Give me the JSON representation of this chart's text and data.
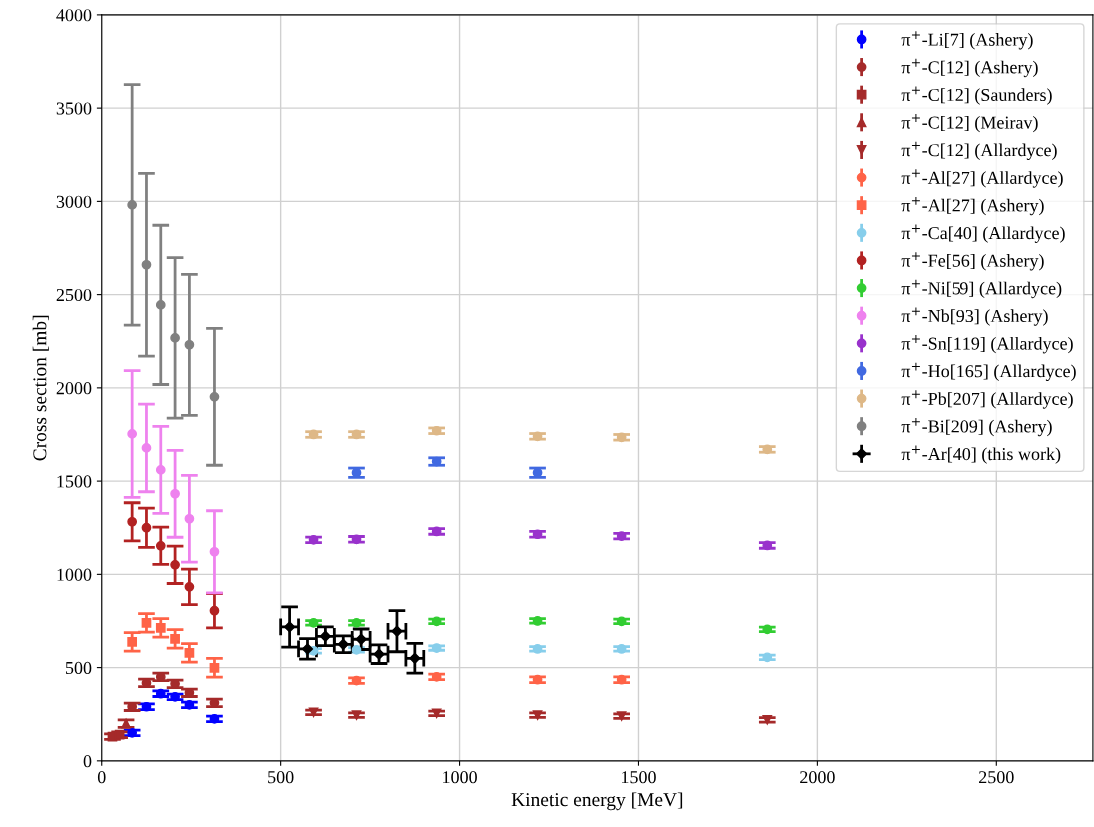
{
  "chart_data": {
    "type": "scatter",
    "xlabel": "Kinetic energy [MeV]",
    "ylabel": "Cross section [mb]",
    "xlim": [
      0,
      2770
    ],
    "ylim": [
      0,
      4000
    ],
    "xticks": [
      0,
      500,
      1000,
      1500,
      2000,
      2500
    ],
    "yticks": [
      0,
      500,
      1000,
      1500,
      2000,
      2500,
      3000,
      3500,
      4000
    ],
    "grid": true,
    "legend": "top right",
    "series": [
      {
        "name": "π$^{+}$-Li[7] (Ashery)",
        "color": "#0000ff",
        "marker": "circle",
        "x": [
          85,
          125,
          165,
          205,
          245,
          315
        ],
        "values": [
          150,
          290,
          360,
          343,
          300,
          225
        ],
        "errors": [
          15,
          15,
          15,
          15,
          15,
          15
        ]
      },
      {
        "name": "π$^{+}$-C[12] (Ashery)",
        "color": "#a52a2a",
        "marker": "circle",
        "x": [
          85,
          125,
          165,
          205,
          245,
          315
        ],
        "values": [
          290,
          418,
          450,
          413,
          365,
          311
        ],
        "errors": [
          20,
          20,
          20,
          20,
          20,
          20
        ]
      },
      {
        "name": "π$^{+}$-C[12] (Saunders)",
        "color": "#a52a2a",
        "marker": "square",
        "x": [
          30,
          50
        ],
        "values": [
          130,
          140
        ],
        "errors": [
          15,
          15
        ]
      },
      {
        "name": "π$^{+}$-C[12] (Meirav)",
        "color": "#a52a2a",
        "marker": "triangle",
        "x": [
          68
        ],
        "values": [
          200
        ],
        "errors": [
          20
        ]
      },
      {
        "name": "π$^{+}$-C[12] (Allardyce)",
        "color": "#a52a2a",
        "marker": "triangle_down",
        "x": [
          592,
          712,
          936,
          1218,
          1453,
          1860
        ],
        "values": [
          260,
          245,
          255,
          245,
          240,
          220
        ],
        "errors": [
          12,
          12,
          12,
          12,
          12,
          12
        ]
      },
      {
        "name": "π$^{+}$-Al[27] (Allardyce)",
        "color": "#ff6347",
        "marker": "circle",
        "x": [
          712,
          936,
          1218,
          1453
        ],
        "values": [
          430,
          450,
          435,
          435
        ],
        "errors": [
          15,
          15,
          15,
          15
        ]
      },
      {
        "name": "π$^{+}$-Al[27] (Ashery)",
        "color": "#ff6347",
        "marker": "square",
        "x": [
          85,
          125,
          165,
          205,
          245,
          315
        ],
        "values": [
          638,
          740,
          713,
          654,
          579,
          499
        ],
        "errors": [
          50,
          50,
          50,
          50,
          50,
          50
        ]
      },
      {
        "name": "π$^{+}$-Ca[40] (Allardyce)",
        "color": "#87ceeb",
        "marker": "circle",
        "x": [
          592,
          712,
          936,
          1218,
          1453,
          1860
        ],
        "values": [
          590,
          595,
          605,
          600,
          600,
          555
        ],
        "errors": [
          12,
          12,
          12,
          12,
          12,
          12
        ]
      },
      {
        "name": "π$^{+}$-Fe[56] (Ashery)",
        "color": "#b22222",
        "marker": "circle",
        "x": [
          85,
          125,
          165,
          205,
          245,
          315
        ],
        "values": [
          1282,
          1250,
          1153,
          1051,
          933,
          805
        ],
        "errors": [
          102,
          105,
          100,
          100,
          95,
          92
        ]
      },
      {
        "name": "π$^{+}$-Ni[59] (Allardyce)",
        "color": "#32cd32",
        "marker": "circle",
        "x": [
          592,
          712,
          936,
          1218,
          1453,
          1860
        ],
        "values": [
          740,
          740,
          748,
          750,
          748,
          705
        ],
        "errors": [
          12,
          12,
          12,
          12,
          12,
          12
        ]
      },
      {
        "name": "π$^{+}$-Nb[93] (Ashery)",
        "color": "#ee82ee",
        "marker": "circle",
        "x": [
          85,
          125,
          165,
          205,
          245,
          315
        ],
        "values": [
          1753,
          1678,
          1560,
          1432,
          1298,
          1121
        ],
        "errors": [
          340,
          235,
          233,
          233,
          233,
          220
        ]
      },
      {
        "name": "π$^{+}$-Sn[119] (Allardyce)",
        "color": "#9932cc",
        "marker": "circle",
        "x": [
          592,
          712,
          936,
          1218,
          1453,
          1860
        ],
        "values": [
          1185,
          1188,
          1230,
          1215,
          1205,
          1155
        ],
        "errors": [
          15,
          15,
          15,
          15,
          15,
          15
        ]
      },
      {
        "name": "π$^{+}$-Ho[165] (Allardyce)",
        "color": "#4169e1",
        "marker": "circle",
        "x": [
          712,
          936,
          1218
        ],
        "values": [
          1545,
          1605,
          1545
        ],
        "errors": [
          25,
          20,
          25
        ]
      },
      {
        "name": "π$^{+}$-Pb[207] (Allardyce)",
        "color": "#deb887",
        "marker": "circle",
        "x": [
          592,
          712,
          936,
          1218,
          1453,
          1860
        ],
        "values": [
          1750,
          1750,
          1770,
          1740,
          1735,
          1670
        ],
        "errors": [
          15,
          15,
          15,
          15,
          15,
          15
        ]
      },
      {
        "name": "π$^{+}$-Bi[209] (Ashery)",
        "color": "#808080",
        "marker": "circle",
        "x": [
          85,
          125,
          165,
          205,
          245,
          315
        ],
        "values": [
          2981,
          2660,
          2445,
          2268,
          2231,
          1952
        ],
        "errors": [
          645,
          490,
          427,
          430,
          378,
          367
        ]
      },
      {
        "name": "π$^{+}$-Ar[40] (this work)",
        "color": "#000000",
        "marker": "diamond",
        "x": [
          525,
          575,
          625,
          675,
          725,
          775,
          825,
          875
        ],
        "values": [
          718,
          600,
          668,
          625,
          652,
          572,
          695,
          550
        ],
        "errors": [
          108,
          55,
          50,
          45,
          55,
          50,
          110,
          80
        ],
        "xerrors": [
          25,
          25,
          25,
          25,
          25,
          25,
          25,
          25
        ]
      }
    ]
  }
}
